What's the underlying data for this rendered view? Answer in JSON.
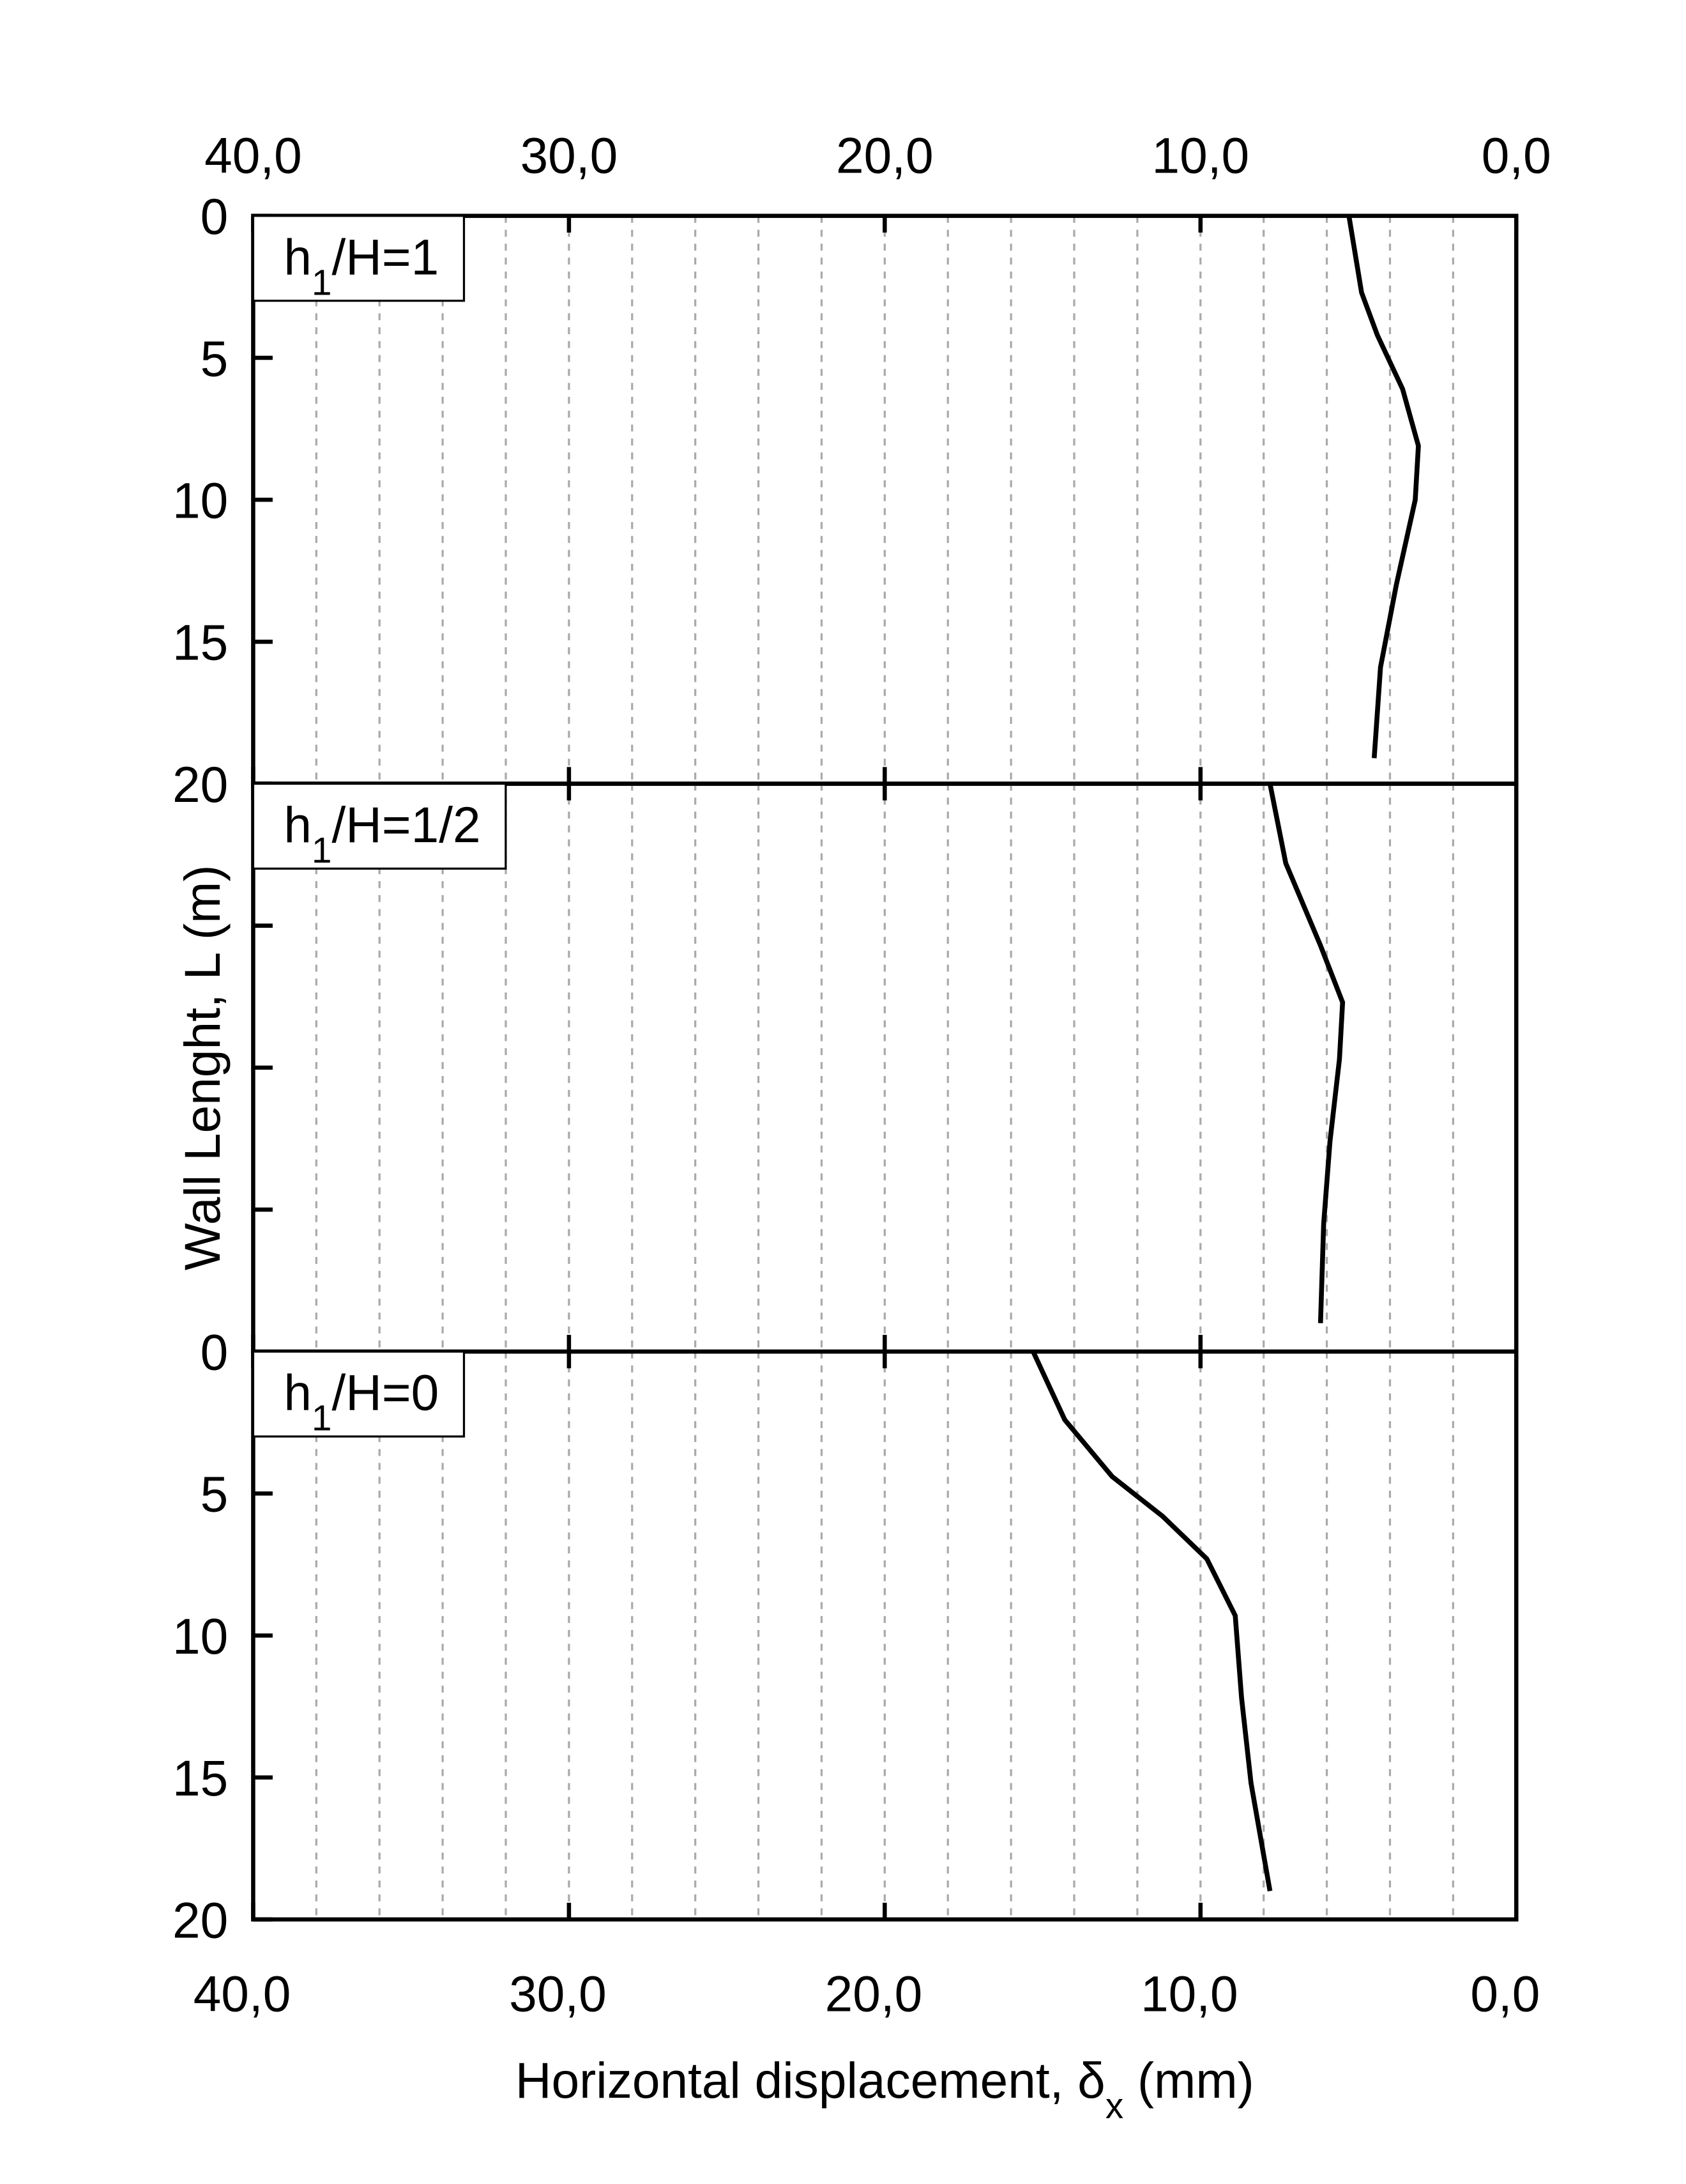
{
  "chart_data": [
    {
      "type": "line",
      "annotation": {
        "base": "h",
        "sub": "1",
        "rest": "/H=1"
      },
      "xlim": [
        40,
        0
      ],
      "xticks": [
        {
          "value": 40,
          "label": "40,0"
        },
        {
          "value": 30,
          "label": "30,0"
        },
        {
          "value": 20,
          "label": "20,0"
        },
        {
          "value": 10,
          "label": "10,0"
        },
        {
          "value": 0,
          "label": "0,0"
        }
      ],
      "xtick_labels": "top",
      "minor_xticks": [
        38,
        36,
        34,
        32,
        30,
        28,
        26,
        24,
        22,
        20,
        18,
        16,
        14,
        12,
        10,
        8,
        6,
        4,
        2
      ],
      "grid": true,
      "ylim": [
        0,
        20
      ],
      "yticks": [
        0,
        5,
        10,
        15,
        20
      ],
      "ytick_labels": true,
      "y_inverted": true,
      "series": [
        {
          "color": "#000000",
          "x": [
            5.3,
            4.9,
            4.4,
            3.6,
            3.1,
            3.2,
            3.8,
            4.3,
            4.5
          ],
          "values": [
            0,
            2.7,
            4.2,
            6.1,
            8.1,
            10,
            13,
            15.9,
            19.1
          ]
        }
      ]
    },
    {
      "type": "line",
      "annotation": {
        "base": "h",
        "sub": "1",
        "rest": "/H=1/2"
      },
      "ylabel": "Wall Lenght, L (m)",
      "xlim": [
        40,
        0
      ],
      "xticks": [
        {
          "value": 40,
          "label": "40,0"
        },
        {
          "value": 30,
          "label": "30,0"
        },
        {
          "value": 20,
          "label": "20,0"
        },
        {
          "value": 10,
          "label": "10,0"
        },
        {
          "value": 0,
          "label": "0,0"
        }
      ],
      "xtick_labels": "none",
      "minor_xticks": [
        38,
        36,
        34,
        32,
        30,
        28,
        26,
        24,
        22,
        20,
        18,
        16,
        14,
        12,
        10,
        8,
        6,
        4,
        2
      ],
      "grid": true,
      "ylim": [
        0,
        20
      ],
      "yticks": [
        0,
        5,
        10,
        15,
        20
      ],
      "ytick_labels": false,
      "y_inverted": true,
      "series": [
        {
          "color": "#000000",
          "x": [
            7.8,
            7.3,
            6.2,
            5.5,
            5.6,
            5.9,
            6.1,
            6.2
          ],
          "values": [
            0,
            2.8,
            5.7,
            7.7,
            9.7,
            12.6,
            15.5,
            19
          ]
        }
      ]
    },
    {
      "type": "line",
      "annotation": {
        "base": "h",
        "sub": "1",
        "rest": "/H=0"
      },
      "xlabel": {
        "base": "Horizontal displacement, δ",
        "sub": "x",
        "rest": " (mm)"
      },
      "xlim": [
        40,
        0
      ],
      "xticks": [
        {
          "value": 40,
          "label": "40,0"
        },
        {
          "value": 30,
          "label": "30,0"
        },
        {
          "value": 20,
          "label": "20,0"
        },
        {
          "value": 10,
          "label": "10,0"
        },
        {
          "value": 0,
          "label": "0,0"
        }
      ],
      "xtick_labels": "bottom",
      "minor_xticks": [
        38,
        36,
        34,
        32,
        30,
        28,
        26,
        24,
        22,
        20,
        18,
        16,
        14,
        12,
        10,
        8,
        6,
        4,
        2
      ],
      "grid": true,
      "ylim": [
        0,
        20
      ],
      "yticks": [
        0,
        5,
        10,
        15,
        20
      ],
      "ytick_labels": true,
      "y_inverted": true,
      "series": [
        {
          "color": "#000000",
          "x": [
            15.3,
            14.3,
            12.8,
            11.2,
            9.8,
            8.9,
            8.7,
            8.4,
            7.8
          ],
          "values": [
            0,
            2.4,
            4.4,
            5.8,
            7.3,
            9.3,
            12.2,
            15.2,
            19
          ]
        }
      ]
    }
  ]
}
